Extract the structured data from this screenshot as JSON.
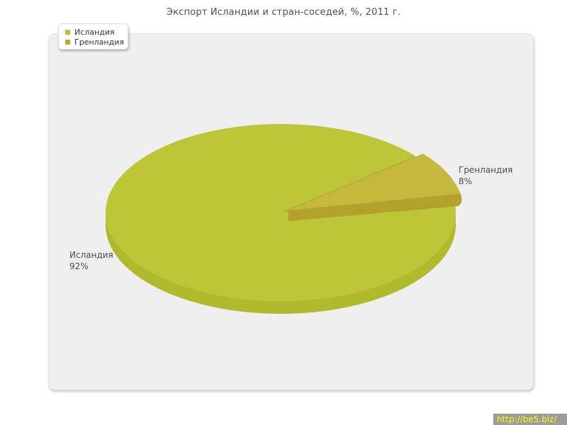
{
  "chart_data": {
    "type": "pie",
    "style_3d": true,
    "title": "Экспорт Исландии и стран-соседей, %, 2011 г.",
    "labels": [
      "Исландия",
      "Гренландия"
    ],
    "values": [
      92,
      8
    ],
    "unit": "%",
    "slices": [
      {
        "label": "Исландия",
        "value": 92,
        "pct_text": "92%",
        "color_top": "#bcc636",
        "color_side": "#b0ba2d",
        "color_wall": "#a8b12e",
        "exploded": false
      },
      {
        "label": "Гренландия",
        "value": 8,
        "pct_text": "8%",
        "color_top": "#c6b83a",
        "color_side": "#b2a22c",
        "exploded": true
      }
    ],
    "legend_position": "top-left",
    "plot_background": "#efefef",
    "title_color": "#4d4d4d",
    "label_color": "#4d4d4d"
  },
  "legend": {
    "items": [
      {
        "label": "Исландия",
        "swatch_color": "#b5c134"
      },
      {
        "label": "Гренландия",
        "swatch_color": "#bcab31"
      }
    ]
  },
  "watermark": {
    "text": "http://be5.biz/",
    "background": "#9c9c9c",
    "text_color": "#fdfd00"
  }
}
